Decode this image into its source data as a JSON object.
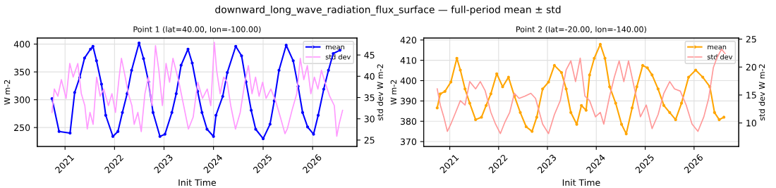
{
  "chart_data": [
    {
      "type": "line",
      "title": "Point 1 (lat=40.00, lon=-100.00)",
      "annotations": [
        "downward_long_wave_radiation_flux_surface — full-period mean ± std"
      ],
      "xlabel": "Init Time",
      "ylabel": "W m-2",
      "y2label": "std dev W m-2",
      "xlim": [
        "2020-06-10",
        "2026-11-24"
      ],
      "xticks": [
        {
          "value": "2021-01-01",
          "label": "2021"
        },
        {
          "value": "2022-01-01",
          "label": "2022"
        },
        {
          "value": "2023-01-01",
          "label": "2023"
        },
        {
          "value": "2024-01-01",
          "label": "2024"
        },
        {
          "value": "2025-01-01",
          "label": "2025"
        },
        {
          "value": "2026-01-01",
          "label": "2026"
        }
      ],
      "ylim": [
        216,
        411
      ],
      "yticks": [
        250,
        300,
        350,
        400
      ],
      "y2lim": [
        23.5,
        49
      ],
      "y2ticks": [
        25,
        30,
        35,
        40,
        45
      ],
      "grid": true,
      "legend": "top right",
      "series": [
        {
          "name": "mean",
          "color": "#0000ff",
          "marker": "circle",
          "x": [
            "2020-09-27",
            "2020-11-18",
            "2021-02-07",
            "2021-03-13",
            "2021-04-19",
            "2021-05-25",
            "2021-07-08",
            "2021-07-26",
            "2021-08-21",
            "2021-09-27",
            "2021-10-28",
            "2021-12-20",
            "2022-01-26",
            "2022-02-28",
            "2022-04-04",
            "2022-05-07",
            "2022-07-01",
            "2022-08-03",
            "2022-09-09",
            "2022-10-12",
            "2022-12-02",
            "2023-01-08",
            "2023-02-28",
            "2023-04-01",
            "2023-05-07",
            "2023-06-27",
            "2023-07-28",
            "2023-09-06",
            "2023-10-08",
            "2023-11-14",
            "2024-01-01",
            "2024-01-19",
            "2024-03-09",
            "2024-04-12",
            "2024-06-13",
            "2024-07-26",
            "2024-08-28",
            "2024-10-05",
            "2024-11-07",
            "2025-01-01",
            "2025-02-21",
            "2025-03-24",
            "2025-04-28",
            "2025-06-20",
            "2025-08-11",
            "2025-09-16",
            "2025-10-19",
            "2025-11-25",
            "2026-01-08",
            "2026-02-11",
            "2026-03-24",
            "2026-04-28",
            "2026-06-02",
            "2026-07-22"
          ],
          "values": [
            302,
            243,
            240,
            313,
            340,
            375,
            391,
            396,
            370,
            328,
            272,
            234,
            243,
            277,
            311,
            353,
            402,
            374,
            332,
            277,
            234,
            238,
            277,
            311,
            362,
            391,
            366,
            315,
            277,
            247,
            234,
            272,
            306,
            349,
            396,
            379,
            332,
            281,
            247,
            230,
            256,
            298,
            353,
            398,
            370,
            324,
            277,
            251,
            238,
            272,
            319,
            353,
            383,
            389
          ]
        },
        {
          "name": "std dev",
          "color": "#ff99ff",
          "axis": "y2",
          "marker": "none",
          "x": [
            "2020-09-27",
            "2020-10-14",
            "2020-11-09",
            "2020-12-05",
            "2021-01-09",
            "2021-02-05",
            "2021-03-02",
            "2021-04-05",
            "2021-05-01",
            "2021-05-27",
            "2021-06-14",
            "2021-07-04",
            "2021-07-27",
            "2021-08-22",
            "2021-09-17",
            "2021-10-13",
            "2021-11-17",
            "2021-12-13",
            "2022-01-08",
            "2022-02-04",
            "2022-02-21",
            "2022-03-18",
            "2022-04-13",
            "2022-05-09",
            "2022-05-26",
            "2022-06-22",
            "2022-07-17",
            "2022-08-13",
            "2022-09-08",
            "2022-10-04",
            "2022-10-30",
            "2022-11-24",
            "2022-12-20",
            "2023-01-16",
            "2023-02-11",
            "2023-03-08",
            "2023-04-21",
            "2023-05-26",
            "2023-06-30",
            "2023-08-04",
            "2023-09-07",
            "2023-10-12",
            "2023-11-16",
            "2023-12-12",
            "2024-01-07",
            "2024-01-24",
            "2024-02-19",
            "2024-03-16",
            "2024-04-11",
            "2024-05-07",
            "2024-06-11",
            "2024-07-16",
            "2024-08-19",
            "2024-09-14",
            "2024-10-11",
            "2024-11-06",
            "2024-12-02",
            "2024-12-28",
            "2025-01-23",
            "2025-02-27",
            "2025-04-03",
            "2025-05-08",
            "2025-06-11",
            "2025-06-28",
            "2025-08-02",
            "2025-09-06",
            "2025-10-02",
            "2025-10-28",
            "2025-11-23",
            "2025-12-19",
            "2026-01-14",
            "2026-02-09",
            "2026-03-07",
            "2026-04-02",
            "2026-05-07",
            "2026-06-10",
            "2026-06-28",
            "2026-07-15",
            "2026-08-10"
          ],
          "values": [
            31.5,
            37,
            35.3,
            39.2,
            34.8,
            43,
            39.8,
            43,
            35.9,
            33.1,
            27.6,
            31.5,
            28.7,
            39.8,
            35.3,
            37,
            33.1,
            35.9,
            31.5,
            39.8,
            44.2,
            40.3,
            35.9,
            33.1,
            28.7,
            31.5,
            27,
            35.9,
            39.8,
            33.1,
            47.2,
            41.4,
            33.1,
            43,
            38.6,
            44.2,
            38.6,
            33.1,
            27.6,
            30.4,
            38.6,
            34.8,
            37,
            33.1,
            48,
            41.4,
            35.9,
            39.8,
            38.6,
            33.1,
            27.6,
            31.5,
            38.6,
            42.5,
            35.9,
            39.8,
            35.3,
            38.6,
            34.8,
            37,
            34.2,
            30.4,
            26.5,
            27.6,
            32,
            35.9,
            44.2,
            39.2,
            42.5,
            35.9,
            39.8,
            37,
            41.4,
            38.6,
            35.3,
            33.1,
            25.9,
            28.7,
            32
          ]
        }
      ]
    },
    {
      "type": "line",
      "title": "Point 2 (lat=-20.00, lon=-140.00)",
      "xlabel": "Init Time",
      "ylabel": "W m-2",
      "y2label": "std dev W m-2",
      "xlim": [
        "2020-06-20",
        "2026-12-01"
      ],
      "xticks": [
        {
          "value": "2021-01-01",
          "label": "2021"
        },
        {
          "value": "2022-01-01",
          "label": "2022"
        },
        {
          "value": "2023-01-01",
          "label": "2023"
        },
        {
          "value": "2024-01-01",
          "label": "2024"
        },
        {
          "value": "2025-01-01",
          "label": "2025"
        },
        {
          "value": "2026-01-01",
          "label": "2026"
        }
      ],
      "ylim": [
        367.6,
        421
      ],
      "yticks": [
        370,
        380,
        390,
        400,
        410,
        420
      ],
      "y2lim": [
        5.8,
        25.2
      ],
      "y2ticks": [
        10,
        15,
        20,
        25
      ],
      "grid": true,
      "legend": "top right",
      "series": [
        {
          "name": "mean",
          "color": "#ffa500",
          "marker": "circle",
          "x": [
            "2020-09-29",
            "2020-10-22",
            "2020-11-26",
            "2021-01-09",
            "2021-02-23",
            "2021-03-21",
            "2021-04-25",
            "2021-05-30",
            "2021-07-13",
            "2021-08-26",
            "2021-09-30",
            "2021-11-04",
            "2021-12-18",
            "2022-01-31",
            "2022-03-16",
            "2022-04-29",
            "2022-06-12",
            "2022-07-26",
            "2022-09-08",
            "2022-10-13",
            "2022-11-26",
            "2023-01-09",
            "2023-02-22",
            "2023-04-16",
            "2023-05-21",
            "2023-06-25",
            "2023-08-08",
            "2023-09-12",
            "2023-10-17",
            "2023-11-12",
            "2023-12-17",
            "2024-01-31",
            "2024-03-06",
            "2024-04-10",
            "2024-05-25",
            "2024-07-08",
            "2024-08-12",
            "2024-09-25",
            "2024-10-30",
            "2024-12-13",
            "2025-01-17",
            "2025-02-21",
            "2025-04-07",
            "2025-05-20",
            "2025-07-03",
            "2025-08-16",
            "2025-09-29",
            "2025-11-21",
            "2026-01-13",
            "2026-03-07",
            "2026-04-29",
            "2026-06-03",
            "2026-07-08",
            "2026-08-12"
          ],
          "values": [
            386.6,
            393.5,
            394.7,
            399.3,
            411,
            405.2,
            395.9,
            388.9,
            380.8,
            382,
            387.8,
            393.5,
            403.4,
            397,
            401.7,
            392.4,
            384.3,
            377.3,
            375,
            382,
            395.9,
            399.3,
            407.5,
            404,
            395.9,
            384.3,
            378.5,
            387.8,
            385.4,
            402.8,
            411,
            417.9,
            411,
            397,
            388.9,
            378.5,
            373.8,
            386.6,
            397,
            407.5,
            406.3,
            402.8,
            395.9,
            387.8,
            384.3,
            380.8,
            388.9,
            401.7,
            405.2,
            401.7,
            397,
            384.3,
            380.8,
            382
          ]
        },
        {
          "name": "std dev",
          "color": "#ff9999",
          "axis": "y2",
          "marker": "none",
          "x": [
            "2020-09-29",
            "2020-10-22",
            "2020-11-17",
            "2020-12-14",
            "2021-01-09",
            "2021-02-14",
            "2021-03-21",
            "2021-04-25",
            "2021-05-30",
            "2021-07-13",
            "2021-08-17",
            "2021-09-22",
            "2021-11-04",
            "2021-12-09",
            "2022-01-14",
            "2022-02-18",
            "2022-03-25",
            "2022-04-29",
            "2022-06-03",
            "2022-07-17",
            "2022-08-30",
            "2022-10-04",
            "2022-11-26",
            "2023-01-09",
            "2023-02-22",
            "2023-04-07",
            "2023-05-21",
            "2023-06-25",
            "2023-07-30",
            "2023-09-03",
            "2023-10-08",
            "2023-11-12",
            "2023-12-26",
            "2024-01-31",
            "2024-02-26",
            "2024-04-10",
            "2024-05-15",
            "2024-06-20",
            "2024-07-25",
            "2024-08-29",
            "2024-10-13",
            "2024-11-26",
            "2025-01-09",
            "2025-02-21",
            "2025-04-07",
            "2025-05-20",
            "2025-07-03",
            "2025-08-08",
            "2025-09-20",
            "2025-11-03",
            "2025-12-17",
            "2026-01-30",
            "2026-03-15",
            "2026-04-20",
            "2026-05-25",
            "2026-06-20",
            "2026-07-25",
            "2026-08-21"
          ],
          "values": [
            16.1,
            13.2,
            11.1,
            8.5,
            9.8,
            11.9,
            14,
            13.2,
            17.4,
            16.1,
            17.4,
            15.8,
            11.9,
            9.8,
            8.1,
            10.2,
            11.9,
            15.3,
            14.4,
            14.8,
            15.3,
            14.4,
            9.8,
            8.1,
            11.5,
            14,
            19.5,
            21.1,
            17.4,
            21.6,
            14.8,
            14,
            11.1,
            11.9,
            9.8,
            14.8,
            18.2,
            21.1,
            17.4,
            21.1,
            16.1,
            11.1,
            13.2,
            9,
            11.5,
            15.3,
            17.4,
            16.1,
            15.7,
            13.2,
            9.8,
            8.5,
            11.1,
            14.4,
            19.9,
            21.6,
            23.2,
            22.4
          ]
        }
      ]
    }
  ]
}
